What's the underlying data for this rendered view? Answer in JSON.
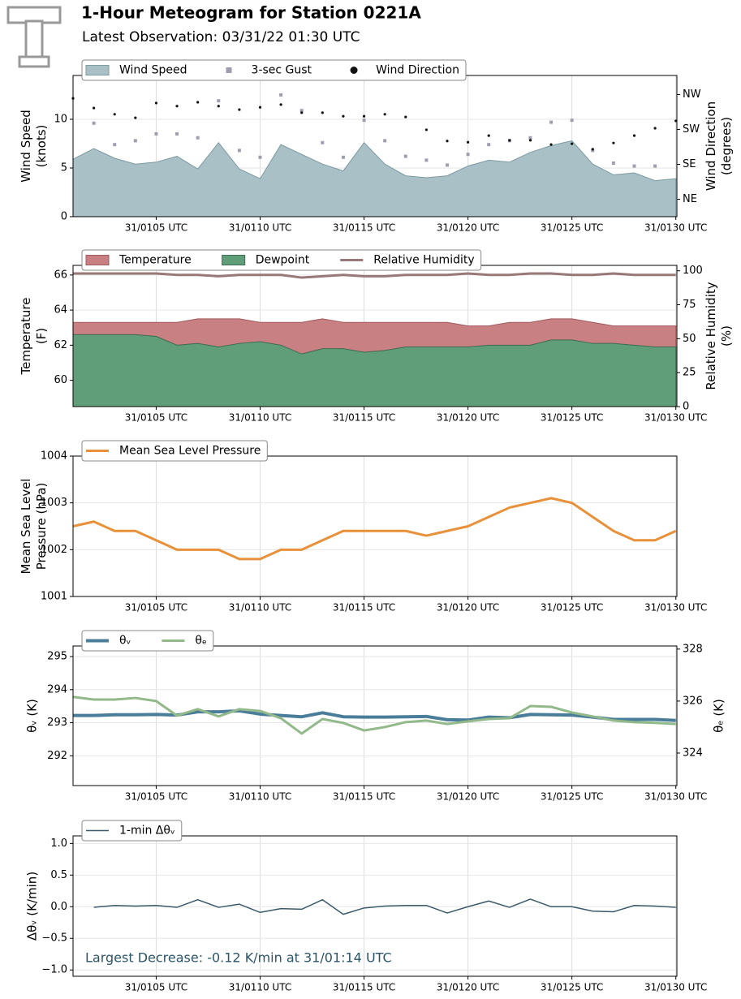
{
  "header": {
    "title": "1-Hour Meteogram for Station 0221A",
    "subtitle": "Latest Observation: 03/31/22 01:30 UTC"
  },
  "chart_data": [
    {
      "type": "area",
      "ylabel": [
        "Wind Speed",
        "(knots)"
      ],
      "y2label": [
        "Wind Direction",
        "(degrees)"
      ],
      "x": [
        1,
        2,
        3,
        4,
        5,
        6,
        7,
        8,
        9,
        10,
        11,
        12,
        13,
        14,
        15,
        16,
        17,
        18,
        19,
        20,
        21,
        22,
        23,
        24,
        25,
        26,
        27,
        28,
        29,
        30
      ],
      "xlim": [
        1,
        30.05
      ],
      "xticks": [
        {
          "value": 5,
          "label": "31/0105 UTC"
        },
        {
          "value": 10,
          "label": "31/0110 UTC"
        },
        {
          "value": 15,
          "label": "31/0115 UTC"
        },
        {
          "value": 20,
          "label": "31/0120 UTC"
        },
        {
          "value": 25,
          "label": "31/0125 UTC"
        },
        {
          "value": 30,
          "label": "31/0130 UTC"
        }
      ],
      "ylim": [
        0,
        14.5
      ],
      "yticks": [
        0,
        5,
        10
      ],
      "y2lim": [
        0,
        364
      ],
      "y2ticks": [
        {
          "value": 45,
          "label": "NE"
        },
        {
          "value": 135,
          "label": "SE"
        },
        {
          "value": 225,
          "label": "SW"
        },
        {
          "value": 315,
          "label": "NW"
        }
      ],
      "grid": true,
      "series": [
        {
          "name": "Wind Speed",
          "style": "area",
          "color": "#a9c1c6",
          "edge": "#7c9aa0",
          "values": [
            5.9,
            7.0,
            6.0,
            5.4,
            5.6,
            6.2,
            4.9,
            7.6,
            4.9,
            3.9,
            7.4,
            6.4,
            5.4,
            4.7,
            7.6,
            5.4,
            4.2,
            4.0,
            4.2,
            5.2,
            5.8,
            5.6,
            6.6,
            7.3,
            7.8,
            5.4,
            4.3,
            4.5,
            3.7,
            3.9
          ]
        },
        {
          "name": "3-sec Gust",
          "style": "square",
          "color": "#9e9eb0",
          "values": [
            null,
            9.6,
            7.4,
            7.8,
            8.5,
            8.5,
            8.1,
            11.9,
            6.8,
            6.1,
            12.5,
            10.9,
            7.6,
            6.1,
            9.9,
            7.8,
            6.2,
            5.8,
            5.3,
            6.4,
            7.4,
            7.8,
            8.1,
            9.7,
            9.9,
            6.8,
            5.5,
            5.2,
            5.2,
            null
          ]
        },
        {
          "name": "Wind Direction",
          "style": "dot",
          "color": "#111111",
          "axis": "y2",
          "values": [
            305,
            280,
            264,
            255,
            293,
            285,
            295,
            285,
            276,
            282,
            289,
            268,
            268,
            259,
            259,
            264,
            257,
            224,
            195,
            192,
            209,
            197,
            197,
            186,
            188,
            174,
            190,
            209,
            228,
            247
          ]
        }
      ]
    },
    {
      "type": "area",
      "ylabel": [
        "Temperature",
        "(F)"
      ],
      "y2label": [
        "Relative Humidity",
        "(%)"
      ],
      "x": [
        1,
        2,
        3,
        4,
        5,
        6,
        7,
        8,
        9,
        10,
        11,
        12,
        13,
        14,
        15,
        16,
        17,
        18,
        19,
        20,
        21,
        22,
        23,
        24,
        25,
        26,
        27,
        28,
        29,
        30
      ],
      "xlim": [
        1,
        30.05
      ],
      "xticks": [
        {
          "value": 5,
          "label": "31/0105 UTC"
        },
        {
          "value": 10,
          "label": "31/0110 UTC"
        },
        {
          "value": 15,
          "label": "31/0115 UTC"
        },
        {
          "value": 20,
          "label": "31/0120 UTC"
        },
        {
          "value": 25,
          "label": "31/0125 UTC"
        },
        {
          "value": 30,
          "label": "31/0130 UTC"
        }
      ],
      "ylim": [
        58.5,
        66.55
      ],
      "yticks": [
        60,
        62,
        64,
        66
      ],
      "y2lim": [
        0,
        104
      ],
      "y2ticks": [
        0,
        25,
        50,
        75,
        100
      ],
      "grid": true,
      "series": [
        {
          "name": "Temperature",
          "style": "area",
          "color": "#c98082",
          "edge": "#a05a5c",
          "values": [
            63.3,
            63.3,
            63.3,
            63.3,
            63.3,
            63.3,
            63.5,
            63.5,
            63.5,
            63.3,
            63.3,
            63.3,
            63.5,
            63.3,
            63.3,
            63.3,
            63.3,
            63.3,
            63.3,
            63.1,
            63.1,
            63.3,
            63.3,
            63.5,
            63.5,
            63.3,
            63.1,
            63.1,
            63.1,
            63.1
          ]
        },
        {
          "name": "Dewpoint",
          "style": "area",
          "color": "#5f9e79",
          "edge": "#3e6b52",
          "values": [
            62.6,
            62.6,
            62.6,
            62.6,
            62.5,
            62.0,
            62.1,
            61.9,
            62.1,
            62.2,
            62.0,
            61.5,
            61.8,
            61.8,
            61.6,
            61.7,
            61.9,
            61.9,
            61.9,
            61.9,
            62.0,
            62.0,
            62.0,
            62.3,
            62.3,
            62.1,
            62.1,
            62.0,
            61.9,
            61.9
          ]
        },
        {
          "name": "Relative Humidity",
          "style": "line",
          "width": 3,
          "color": "#987878",
          "axis": "y2",
          "values": [
            98,
            98,
            98,
            98,
            98,
            97,
            97,
            96,
            97,
            97,
            97,
            95,
            96,
            97,
            96,
            96,
            97,
            97,
            97,
            98,
            97,
            97,
            98,
            98,
            97,
            97,
            98,
            97,
            97,
            97
          ]
        }
      ]
    },
    {
      "type": "line",
      "ylabel": [
        "Mean Sea Level",
        "Pressure (hPa)"
      ],
      "x": [
        1,
        2,
        3,
        4,
        5,
        6,
        7,
        8,
        9,
        10,
        11,
        12,
        13,
        14,
        15,
        16,
        17,
        18,
        19,
        20,
        21,
        22,
        23,
        24,
        25,
        26,
        27,
        28,
        29,
        30
      ],
      "xlim": [
        1,
        30.05
      ],
      "xticks": [
        {
          "value": 5,
          "label": "31/0105 UTC"
        },
        {
          "value": 10,
          "label": "31/0110 UTC"
        },
        {
          "value": 15,
          "label": "31/0115 UTC"
        },
        {
          "value": 20,
          "label": "31/0120 UTC"
        },
        {
          "value": 25,
          "label": "31/0125 UTC"
        },
        {
          "value": 30,
          "label": "31/0130 UTC"
        }
      ],
      "ylim": [
        1001,
        1004
      ],
      "yticks": [
        1001,
        1002,
        1003,
        1004
      ],
      "grid": true,
      "series": [
        {
          "name": "Mean Sea Level Pressure",
          "style": "line",
          "width": 3,
          "color": "#e8913a",
          "values": [
            1002.5,
            1002.6,
            1002.4,
            1002.4,
            1002.2,
            1002.0,
            1002.0,
            1002.0,
            1001.8,
            1001.8,
            1002.0,
            1002.0,
            1002.2,
            1002.4,
            1002.4,
            1002.4,
            1002.4,
            1002.3,
            1002.4,
            1002.5,
            1002.7,
            1002.9,
            1003.0,
            1003.1,
            1003.0,
            1002.7,
            1002.4,
            1002.2,
            1002.2,
            1002.4
          ]
        }
      ]
    },
    {
      "type": "line",
      "ylabel": [
        "θᵥ (K)"
      ],
      "y2label": [
        "θₑ (K)"
      ],
      "x": [
        1,
        2,
        3,
        4,
        5,
        6,
        7,
        8,
        9,
        10,
        11,
        12,
        13,
        14,
        15,
        16,
        17,
        18,
        19,
        20,
        21,
        22,
        23,
        24,
        25,
        26,
        27,
        28,
        29,
        30
      ],
      "xlim": [
        1,
        30.05
      ],
      "xticks": [
        {
          "value": 5,
          "label": "31/0105 UTC"
        },
        {
          "value": 10,
          "label": "31/0110 UTC"
        },
        {
          "value": 15,
          "label": "31/0115 UTC"
        },
        {
          "value": 20,
          "label": "31/0120 UTC"
        },
        {
          "value": 25,
          "label": "31/0125 UTC"
        },
        {
          "value": 30,
          "label": "31/0130 UTC"
        }
      ],
      "ylim": [
        291.1,
        295.32
      ],
      "yticks": [
        292,
        293,
        294,
        295
      ],
      "y2lim": [
        322.75,
        328.12
      ],
      "y2ticks": [
        324,
        326,
        328
      ],
      "grid": true,
      "series": [
        {
          "name": "θᵥ",
          "style": "line",
          "width": 4,
          "color": "#4a7d99",
          "values": [
            293.22,
            293.22,
            293.24,
            293.24,
            293.25,
            293.23,
            293.33,
            293.33,
            293.36,
            293.26,
            293.22,
            293.18,
            293.3,
            293.18,
            293.17,
            293.17,
            293.18,
            293.19,
            293.09,
            293.08,
            293.17,
            293.15,
            293.25,
            293.24,
            293.23,
            293.17,
            293.1,
            293.1,
            293.1,
            293.07
          ]
        },
        {
          "name": "θₑ",
          "style": "line",
          "width": 3,
          "color": "#92b98a",
          "axis": "y2",
          "values": [
            326.16,
            326.06,
            326.06,
            326.12,
            326.0,
            325.44,
            325.69,
            325.41,
            325.69,
            325.62,
            325.34,
            324.75,
            325.31,
            325.16,
            324.87,
            325.0,
            325.19,
            325.25,
            325.12,
            325.22,
            325.31,
            325.34,
            325.81,
            325.78,
            325.56,
            325.41,
            325.25,
            325.19,
            325.16,
            325.12
          ]
        }
      ]
    },
    {
      "type": "line",
      "ylabel": [
        "Δθᵥ (K/min)"
      ],
      "annotation": "Largest Decrease: -0.12 K/min at 31/01:14 UTC",
      "x": [
        1,
        2,
        3,
        4,
        5,
        6,
        7,
        8,
        9,
        10,
        11,
        12,
        13,
        14,
        15,
        16,
        17,
        18,
        19,
        20,
        21,
        22,
        23,
        24,
        25,
        26,
        27,
        28,
        29,
        30
      ],
      "xlim": [
        1,
        30.05
      ],
      "xticks": [
        {
          "value": 5,
          "label": "31/0105 UTC"
        },
        {
          "value": 10,
          "label": "31/0110 UTC"
        },
        {
          "value": 15,
          "label": "31/0115 UTC"
        },
        {
          "value": 20,
          "label": "31/0120 UTC"
        },
        {
          "value": 25,
          "label": "31/0125 UTC"
        },
        {
          "value": 30,
          "label": "31/0130 UTC"
        }
      ],
      "ylim": [
        -1.1,
        1.12
      ],
      "yticks": [
        {
          "value": -1,
          "label": "−1.0"
        },
        {
          "value": -0.5,
          "label": "−0.5"
        },
        {
          "value": 0,
          "label": "0.0"
        },
        {
          "value": 0.5,
          "label": "0.5"
        },
        {
          "value": 1,
          "label": "1.0"
        }
      ],
      "grid": true,
      "series": [
        {
          "name": "1-min Δθᵥ",
          "style": "line",
          "width": 1.5,
          "color": "#3a5a6a",
          "values": [
            null,
            -0.01,
            0.02,
            0.01,
            0.02,
            -0.01,
            0.11,
            -0.01,
            0.04,
            -0.09,
            -0.03,
            -0.04,
            0.11,
            -0.12,
            -0.02,
            0.01,
            0.02,
            0.02,
            -0.1,
            0.0,
            0.09,
            -0.01,
            0.12,
            0.0,
            0.0,
            -0.07,
            -0.08,
            0.02,
            0.01,
            -0.01
          ]
        }
      ]
    }
  ]
}
